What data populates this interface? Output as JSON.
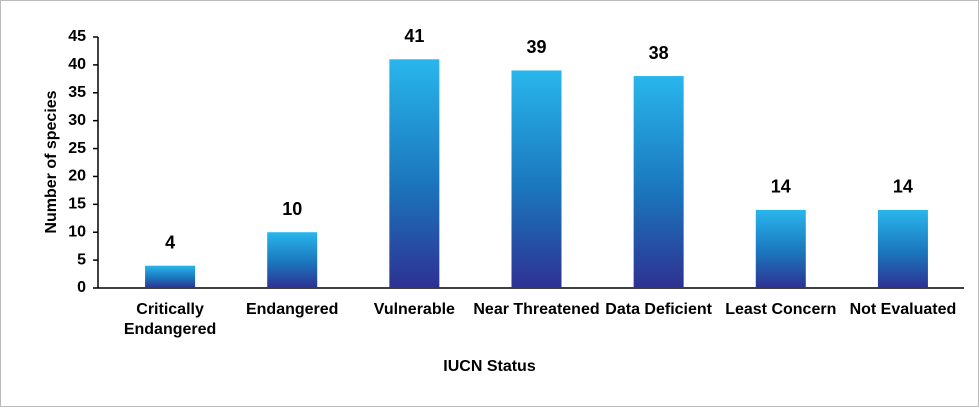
{
  "chart_data": {
    "type": "bar",
    "categories": [
      "Critically Endangered",
      "Endangered",
      "Vulnerable",
      "Near Threatened",
      "Data Deficient",
      "Least Concern",
      "Not Evaluated"
    ],
    "values": [
      4,
      10,
      41,
      39,
      38,
      14,
      14
    ],
    "color": "#1b75bc",
    "xlabel": "IUCN Status",
    "ylabel": "Number of species",
    "ylim": [
      0,
      45
    ],
    "yticks": [
      0,
      5,
      10,
      15,
      20,
      25,
      30,
      35,
      40,
      45
    ],
    "grid": false
  }
}
